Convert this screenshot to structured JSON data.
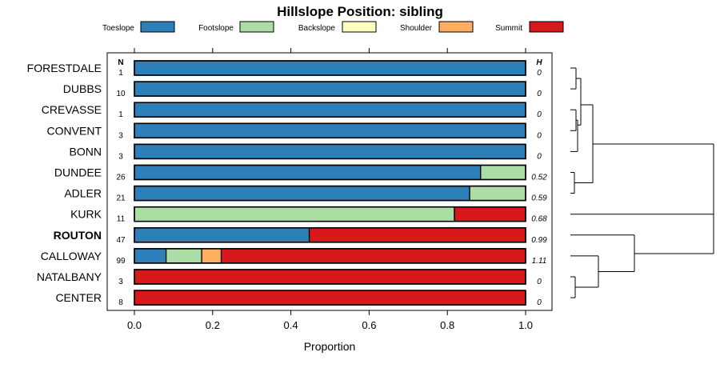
{
  "chart_data": {
    "type": "bar",
    "orientation": "horizontal-stacked-proportion",
    "title": "Hillslope Position: sibling",
    "xlabel": "Proportion",
    "xlim": [
      0,
      1
    ],
    "xticks": [
      "0.0",
      "0.2",
      "0.4",
      "0.6",
      "0.8",
      "1.0"
    ],
    "n_header": "N",
    "h_header": "H",
    "legend": [
      {
        "name": "Toeslope",
        "color": "#2c7fb8"
      },
      {
        "name": "Footslope",
        "color": "#abdda4"
      },
      {
        "name": "Backslope",
        "color": "#ffffbf"
      },
      {
        "name": "Shoulder",
        "color": "#fdae61"
      },
      {
        "name": "Summit",
        "color": "#d7191c"
      }
    ],
    "rows": [
      {
        "label": "FORESTDALE",
        "n": "1",
        "h": "0",
        "bold": false,
        "values": [
          1.0,
          0,
          0,
          0,
          0
        ]
      },
      {
        "label": "DUBBS",
        "n": "10",
        "h": "0",
        "bold": false,
        "values": [
          1.0,
          0,
          0,
          0,
          0
        ]
      },
      {
        "label": "CREVASSE",
        "n": "1",
        "h": "0",
        "bold": false,
        "values": [
          1.0,
          0,
          0,
          0,
          0
        ]
      },
      {
        "label": "CONVENT",
        "n": "3",
        "h": "0",
        "bold": false,
        "values": [
          1.0,
          0,
          0,
          0,
          0
        ]
      },
      {
        "label": "BONN",
        "n": "3",
        "h": "0",
        "bold": false,
        "values": [
          1.0,
          0,
          0,
          0,
          0
        ]
      },
      {
        "label": "DUNDEE",
        "n": "26",
        "h": "0.52",
        "bold": false,
        "values": [
          0.885,
          0.115,
          0,
          0,
          0
        ]
      },
      {
        "label": "ADLER",
        "n": "21",
        "h": "0.59",
        "bold": false,
        "values": [
          0.857,
          0.143,
          0,
          0,
          0
        ]
      },
      {
        "label": "KURK",
        "n": "11",
        "h": "0.68",
        "bold": false,
        "values": [
          0,
          0.818,
          0,
          0,
          0.182
        ]
      },
      {
        "label": "ROUTON",
        "n": "47",
        "h": "0.99",
        "bold": true,
        "values": [
          0.447,
          0,
          0,
          0,
          0.553
        ]
      },
      {
        "label": "CALLOWAY",
        "n": "99",
        "h": "1.11",
        "bold": false,
        "values": [
          0.081,
          0.091,
          0,
          0.05,
          0.778
        ]
      },
      {
        "label": "NATALBANY",
        "n": "3",
        "h": "0",
        "bold": false,
        "values": [
          0,
          0,
          0,
          0,
          1.0
        ]
      },
      {
        "label": "CENTER",
        "n": "8",
        "h": "0",
        "bold": false,
        "values": [
          0,
          0,
          0,
          0,
          1.0
        ]
      }
    ]
  }
}
